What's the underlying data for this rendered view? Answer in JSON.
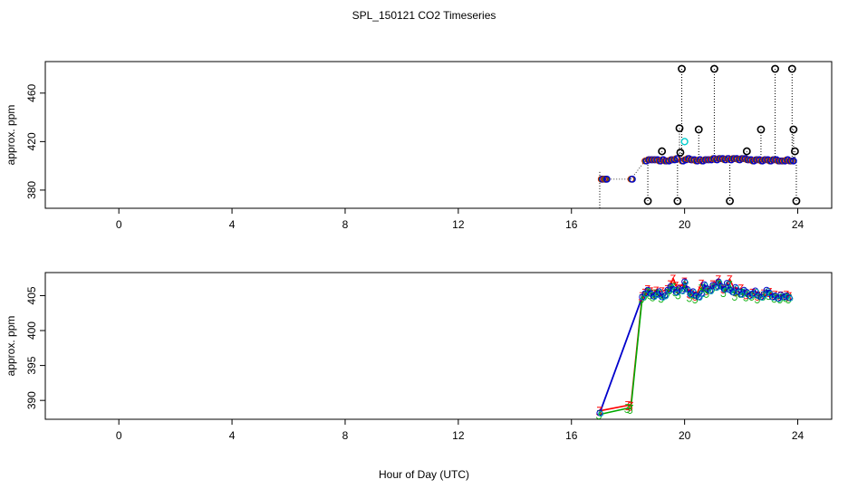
{
  "chart_data": [
    {
      "type": "scatter",
      "title": "SPL_150121  CO2 Timeseries",
      "xlabel": "",
      "ylabel": "approx. ppm",
      "xlim": [
        -2.6,
        25.2
      ],
      "ylim": [
        365,
        486
      ],
      "xticks": [
        0,
        4,
        8,
        12,
        16,
        20,
        24
      ],
      "yticks": [
        380,
        420,
        460
      ],
      "colors": {
        "blue": "#0000cc",
        "red": "#ff0000",
        "green": "#00aa00",
        "black": "#000000",
        "cyan": "#00cccc"
      },
      "series": [
        {
          "marker": "circle-dotted",
          "color": "blue",
          "x": [
            17.05,
            17.15,
            17.2,
            18.1,
            18.6,
            18.7,
            18.8,
            18.9,
            19.0,
            19.1,
            19.2,
            19.3,
            19.4,
            19.5,
            19.6,
            19.7,
            19.9,
            20.0,
            20.1,
            20.2,
            20.3,
            20.4,
            20.5,
            20.6,
            20.7,
            20.8,
            20.9,
            21.0,
            21.1,
            21.2,
            21.3,
            21.4,
            21.5,
            21.6,
            21.7,
            21.8,
            21.9,
            22.0,
            22.1,
            22.2,
            22.3,
            22.4,
            22.5,
            22.6,
            22.7,
            22.8,
            22.9,
            23.0,
            23.1,
            23.2,
            23.3,
            23.4,
            23.5,
            23.6,
            23.7,
            23.8
          ],
          "y": [
            389,
            389,
            389,
            389,
            404,
            405,
            405,
            405,
            405,
            404,
            405,
            404,
            404,
            405,
            405,
            406,
            404,
            405,
            406,
            405,
            405,
            404,
            405,
            404,
            405,
            405,
            405,
            406,
            405,
            406,
            406,
            405,
            406,
            405,
            406,
            406,
            405,
            406,
            406,
            405,
            405,
            404,
            405,
            405,
            404,
            405,
            405,
            404,
            405,
            405,
            404,
            404,
            404,
            405,
            404,
            404
          ]
        },
        {
          "marker": "circle-outlier",
          "color": "black",
          "x": [
            18.7,
            19.2,
            19.75,
            19.82,
            19.85,
            19.9,
            20.5,
            21.05,
            21.6,
            22.2,
            22.7,
            23.2,
            23.8,
            23.85,
            23.9,
            23.95
          ],
          "y": [
            371,
            412,
            371,
            431,
            411,
            480,
            430,
            480,
            371,
            412,
            430,
            480,
            480,
            430,
            412,
            371
          ]
        },
        {
          "marker": "circle",
          "color": "cyan",
          "x": [
            20.0
          ],
          "y": [
            420
          ]
        }
      ]
    },
    {
      "type": "line",
      "title": "",
      "xlabel": "Hour of Day (UTC)",
      "ylabel": "approx. ppm",
      "xlim": [
        -2.6,
        25.2
      ],
      "ylim": [
        387.3,
        408.3
      ],
      "xticks": [
        0,
        4,
        8,
        12,
        16,
        20,
        24
      ],
      "yticks": [
        390,
        395,
        400,
        405
      ],
      "colors": {
        "blue": "#0000cc",
        "red": "#ff0000",
        "green": "#00aa00",
        "cyan": "#00aaaa"
      },
      "series": [
        {
          "color": "blue",
          "marker": "circle",
          "x": [
            17.0,
            18.5,
            18.6,
            18.7,
            18.8,
            18.9,
            19.0,
            19.1,
            19.2,
            19.3,
            19.4,
            19.5,
            19.6,
            19.7,
            19.8,
            19.9,
            20.0,
            20.1,
            20.2,
            20.3,
            20.4,
            20.5,
            20.6,
            20.7,
            20.8,
            20.9,
            21.0,
            21.1,
            21.2,
            21.3,
            21.4,
            21.5,
            21.6,
            21.7,
            21.8,
            21.9,
            22.0,
            22.1,
            22.2,
            22.3,
            22.4,
            22.5,
            22.6,
            22.7,
            22.8,
            22.9,
            23.0,
            23.1,
            23.2,
            23.3,
            23.4,
            23.5,
            23.6,
            23.7
          ],
          "y": [
            388.2,
            404.8,
            405.3,
            405.8,
            405.3,
            404.9,
            405.2,
            405.6,
            404.8,
            405.0,
            405.8,
            406.3,
            405.9,
            405.5,
            406.0,
            405.7,
            407.0,
            405.9,
            405.2,
            405.6,
            405.0,
            404.8,
            405.3,
            406.6,
            406.0,
            405.7,
            406.5,
            406.2,
            407.0,
            406.3,
            405.9,
            406.8,
            405.8,
            405.5,
            406.2,
            405.6,
            405.2,
            405.8,
            405.5,
            405.0,
            405.3,
            405.7,
            405.0,
            404.8,
            405.2,
            405.8,
            405.4,
            404.8,
            405.0,
            404.6,
            405.1,
            404.8,
            405.0,
            404.7
          ]
        },
        {
          "color": "red",
          "marker": "digit",
          "x": [
            17.0,
            18.0,
            18.1,
            18.5,
            18.6,
            18.7,
            18.8,
            18.9,
            19.0,
            19.2,
            19.4,
            19.5,
            19.6,
            19.7,
            19.8,
            20.0,
            20.2,
            20.4,
            20.6,
            20.8,
            21.0,
            21.2,
            21.4,
            21.6,
            21.8,
            22.0,
            22.2,
            22.4,
            22.6,
            22.8,
            23.0,
            23.2,
            23.4,
            23.6,
            23.7
          ],
          "y": [
            388.5,
            389.3,
            389.2,
            404.9,
            405.4,
            405.9,
            405.6,
            405.3,
            405.7,
            405.6,
            405.9,
            406.6,
            407.4,
            406.4,
            406.0,
            407.0,
            405.3,
            405.0,
            406.7,
            405.8,
            406.6,
            407.3,
            406.0,
            407.3,
            405.6,
            406.0,
            405.2,
            405.4,
            405.0,
            405.3,
            405.5,
            405.1,
            405.0,
            405.1,
            404.9
          ]
        },
        {
          "color": "green",
          "marker": "digit",
          "x": [
            17.0,
            18.0,
            18.1,
            18.5,
            18.6,
            18.7,
            18.8,
            18.9,
            19.0,
            19.2,
            19.4,
            19.5,
            19.6,
            19.7,
            19.8,
            20.0,
            20.2,
            20.4,
            20.6,
            20.8,
            21.0,
            21.2,
            21.4,
            21.6,
            21.8,
            22.0,
            22.2,
            22.4,
            22.6,
            22.8,
            23.0,
            23.2,
            23.4,
            23.6,
            23.7
          ],
          "y": [
            388.0,
            388.9,
            388.8,
            404.6,
            405.0,
            405.5,
            405.2,
            404.9,
            405.3,
            404.7,
            405.4,
            405.9,
            406.2,
            405.6,
            405.2,
            406.3,
            404.8,
            404.6,
            406.0,
            405.4,
            406.1,
            406.6,
            405.5,
            406.5,
            405.0,
            405.4,
            404.9,
            405.0,
            404.6,
            405.0,
            405.1,
            404.7,
            404.6,
            404.8,
            404.6
          ]
        }
      ]
    }
  ]
}
